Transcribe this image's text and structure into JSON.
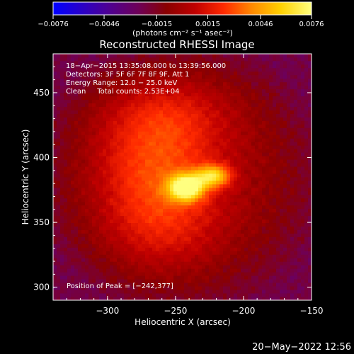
{
  "chart_data": {
    "type": "heatmap",
    "title": "Reconstructed RHESSI Image",
    "xlabel": "Heliocentric X (arcsec)",
    "ylabel": "Heliocentric Y (arcsec)",
    "xlim": [
      -340,
      -150
    ],
    "ylim": [
      290,
      480
    ],
    "x_ticks": [
      -300,
      -250,
      -200,
      -150
    ],
    "x_tick_labels": [
      "−300",
      "−250",
      "−200",
      "−150"
    ],
    "y_ticks": [
      300,
      350,
      400,
      450
    ],
    "y_tick_labels": [
      "300",
      "350",
      "400",
      "450"
    ],
    "colorbar": {
      "range": [
        -0.0076,
        0.0076
      ],
      "tick_values": [
        -0.0076,
        -0.0046,
        -0.0015,
        0.0015,
        0.0046,
        0.0076
      ],
      "tick_labels": [
        "−0.0076",
        "−0.0046",
        "−0.0015",
        "0.0015",
        "0.0046",
        "0.0076"
      ],
      "unit_label": "(photons cm⁻² s⁻¹ asec⁻²)",
      "colors": [
        "#0000ff",
        "#2a00c8",
        "#500090",
        "#6e0058",
        "#8a0000",
        "#c00000",
        "#ff2a00",
        "#ff8a00",
        "#ffd000",
        "#ffff80"
      ]
    },
    "info_lines": [
      "18−Apr−2015 13:35:08.000 to 13:39:56.000",
      "Detectors: 3F 5F 6F 7F 8F 9F, Att 1",
      "Energy Range: 12.0 − 25.0 keV",
      "Clean     Total counts: 2.53E+04"
    ],
    "peak_label": "Position of Peak = [−242,377]",
    "peak": {
      "x": -242,
      "y": 377,
      "value": 0.0076
    },
    "sources": [
      {
        "x": -242,
        "y": 377,
        "sx": 9,
        "sy": 7,
        "amp": 1.0
      },
      {
        "x": -222,
        "y": 386,
        "sx": 9,
        "sy": 6,
        "amp": 0.72
      },
      {
        "x": -265,
        "y": 395,
        "sx": 32,
        "sy": 34,
        "amp": 0.38
      },
      {
        "x": -255,
        "y": 435,
        "sx": 35,
        "sy": 20,
        "amp": 0.2
      },
      {
        "x": -260,
        "y": 345,
        "sx": 30,
        "sy": 25,
        "amp": 0.22
      }
    ],
    "grid": false
  },
  "footer": {
    "timestamp": "20−May−2022 12:56"
  }
}
